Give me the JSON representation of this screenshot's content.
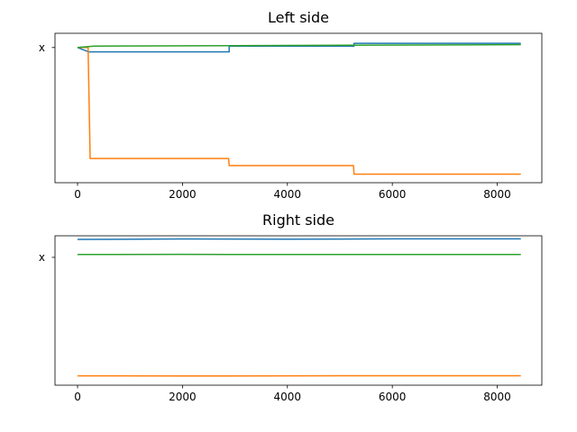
{
  "chart_data": [
    {
      "type": "line",
      "title": "Left side",
      "xlim": [
        -430,
        8850
      ],
      "ylim": [
        -95,
        10
      ],
      "x_ticks": [
        0,
        2000,
        4000,
        6000,
        8000
      ],
      "x_tick_labels": [
        "0",
        "2000",
        "4000",
        "6000",
        "8000"
      ],
      "y_tick_label": "x",
      "y_tick_value": 0,
      "grid": false,
      "series": [
        {
          "color": "#1f77b4",
          "points": [
            [
              0,
              0
            ],
            [
              210,
              -3
            ],
            [
              2890,
              -3
            ],
            [
              2890,
              1
            ],
            [
              5270,
              1
            ],
            [
              5270,
              3
            ],
            [
              8450,
              3
            ]
          ]
        },
        {
          "color": "#ff7f0e",
          "points": [
            [
              0,
              0
            ],
            [
              200,
              0
            ],
            [
              240,
              -78
            ],
            [
              2880,
              -78
            ],
            [
              2890,
              -83
            ],
            [
              5260,
              -83
            ],
            [
              5270,
              -89
            ],
            [
              8450,
              -89
            ]
          ]
        },
        {
          "color": "#2ca02c",
          "points": [
            [
              0,
              0
            ],
            [
              320,
              1
            ],
            [
              8450,
              2
            ]
          ]
        }
      ]
    },
    {
      "type": "line",
      "title": "Right side",
      "xlim": [
        -430,
        8850
      ],
      "ylim": [
        -89,
        15
      ],
      "x_ticks": [
        0,
        2000,
        4000,
        6000,
        8000
      ],
      "x_tick_labels": [
        "0",
        "2000",
        "4000",
        "6000",
        "8000"
      ],
      "y_tick_label": "x",
      "y_tick_value": 0,
      "grid": false,
      "series": [
        {
          "color": "#1f77b4",
          "points": [
            [
              0,
              12.5
            ],
            [
              2000,
              12.8
            ],
            [
              4000,
              12.6
            ],
            [
              6000,
              12.9
            ],
            [
              8450,
              12.9
            ]
          ]
        },
        {
          "color": "#2ca02c",
          "points": [
            [
              0,
              2
            ],
            [
              2000,
              2.1
            ],
            [
              4000,
              2
            ],
            [
              6000,
              2
            ],
            [
              8450,
              2
            ]
          ]
        },
        {
          "color": "#ff7f0e",
          "points": [
            [
              0,
              -82.5
            ],
            [
              2000,
              -82.6
            ],
            [
              4000,
              -82.5
            ],
            [
              6000,
              -82.4
            ],
            [
              8450,
              -82.4
            ]
          ]
        }
      ]
    }
  ]
}
